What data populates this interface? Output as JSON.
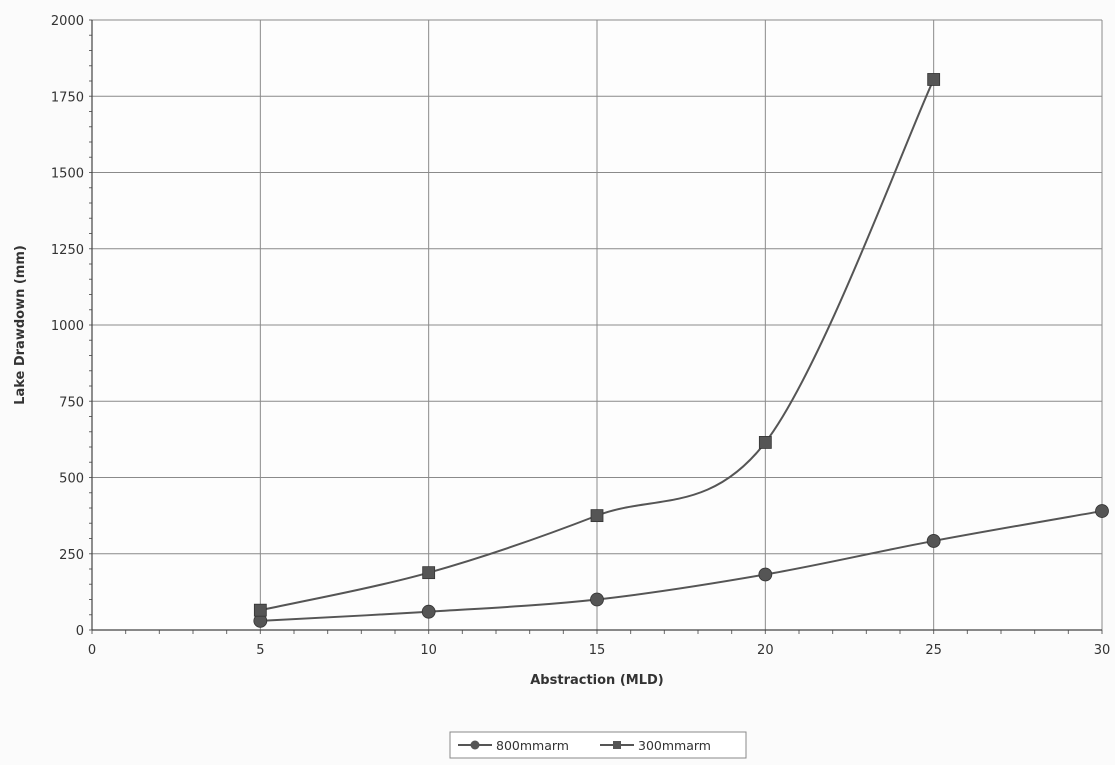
{
  "chart_data": {
    "type": "line",
    "title": "",
    "xlabel": "Abstraction (MLD)",
    "ylabel": "Lake Drawdown (mm)",
    "xlim": [
      0,
      30
    ],
    "ylim": [
      0,
      2000
    ],
    "xticks": [
      0,
      5,
      10,
      15,
      20,
      25,
      30
    ],
    "yticks": [
      0,
      250,
      500,
      750,
      1000,
      1250,
      1500,
      1750,
      2000
    ],
    "grid": true,
    "legend_position": "bottom-center",
    "series": [
      {
        "name": "800mmarm",
        "marker": "circle",
        "color": "#555555",
        "x": [
          5,
          10,
          15,
          20,
          25,
          30
        ],
        "values": [
          30,
          60,
          100,
          182,
          292,
          390
        ]
      },
      {
        "name": "300mmarm",
        "marker": "square",
        "color": "#555555",
        "x": [
          5,
          10,
          15,
          20,
          25
        ],
        "values": [
          65,
          188,
          375,
          615,
          1805
        ]
      }
    ]
  }
}
